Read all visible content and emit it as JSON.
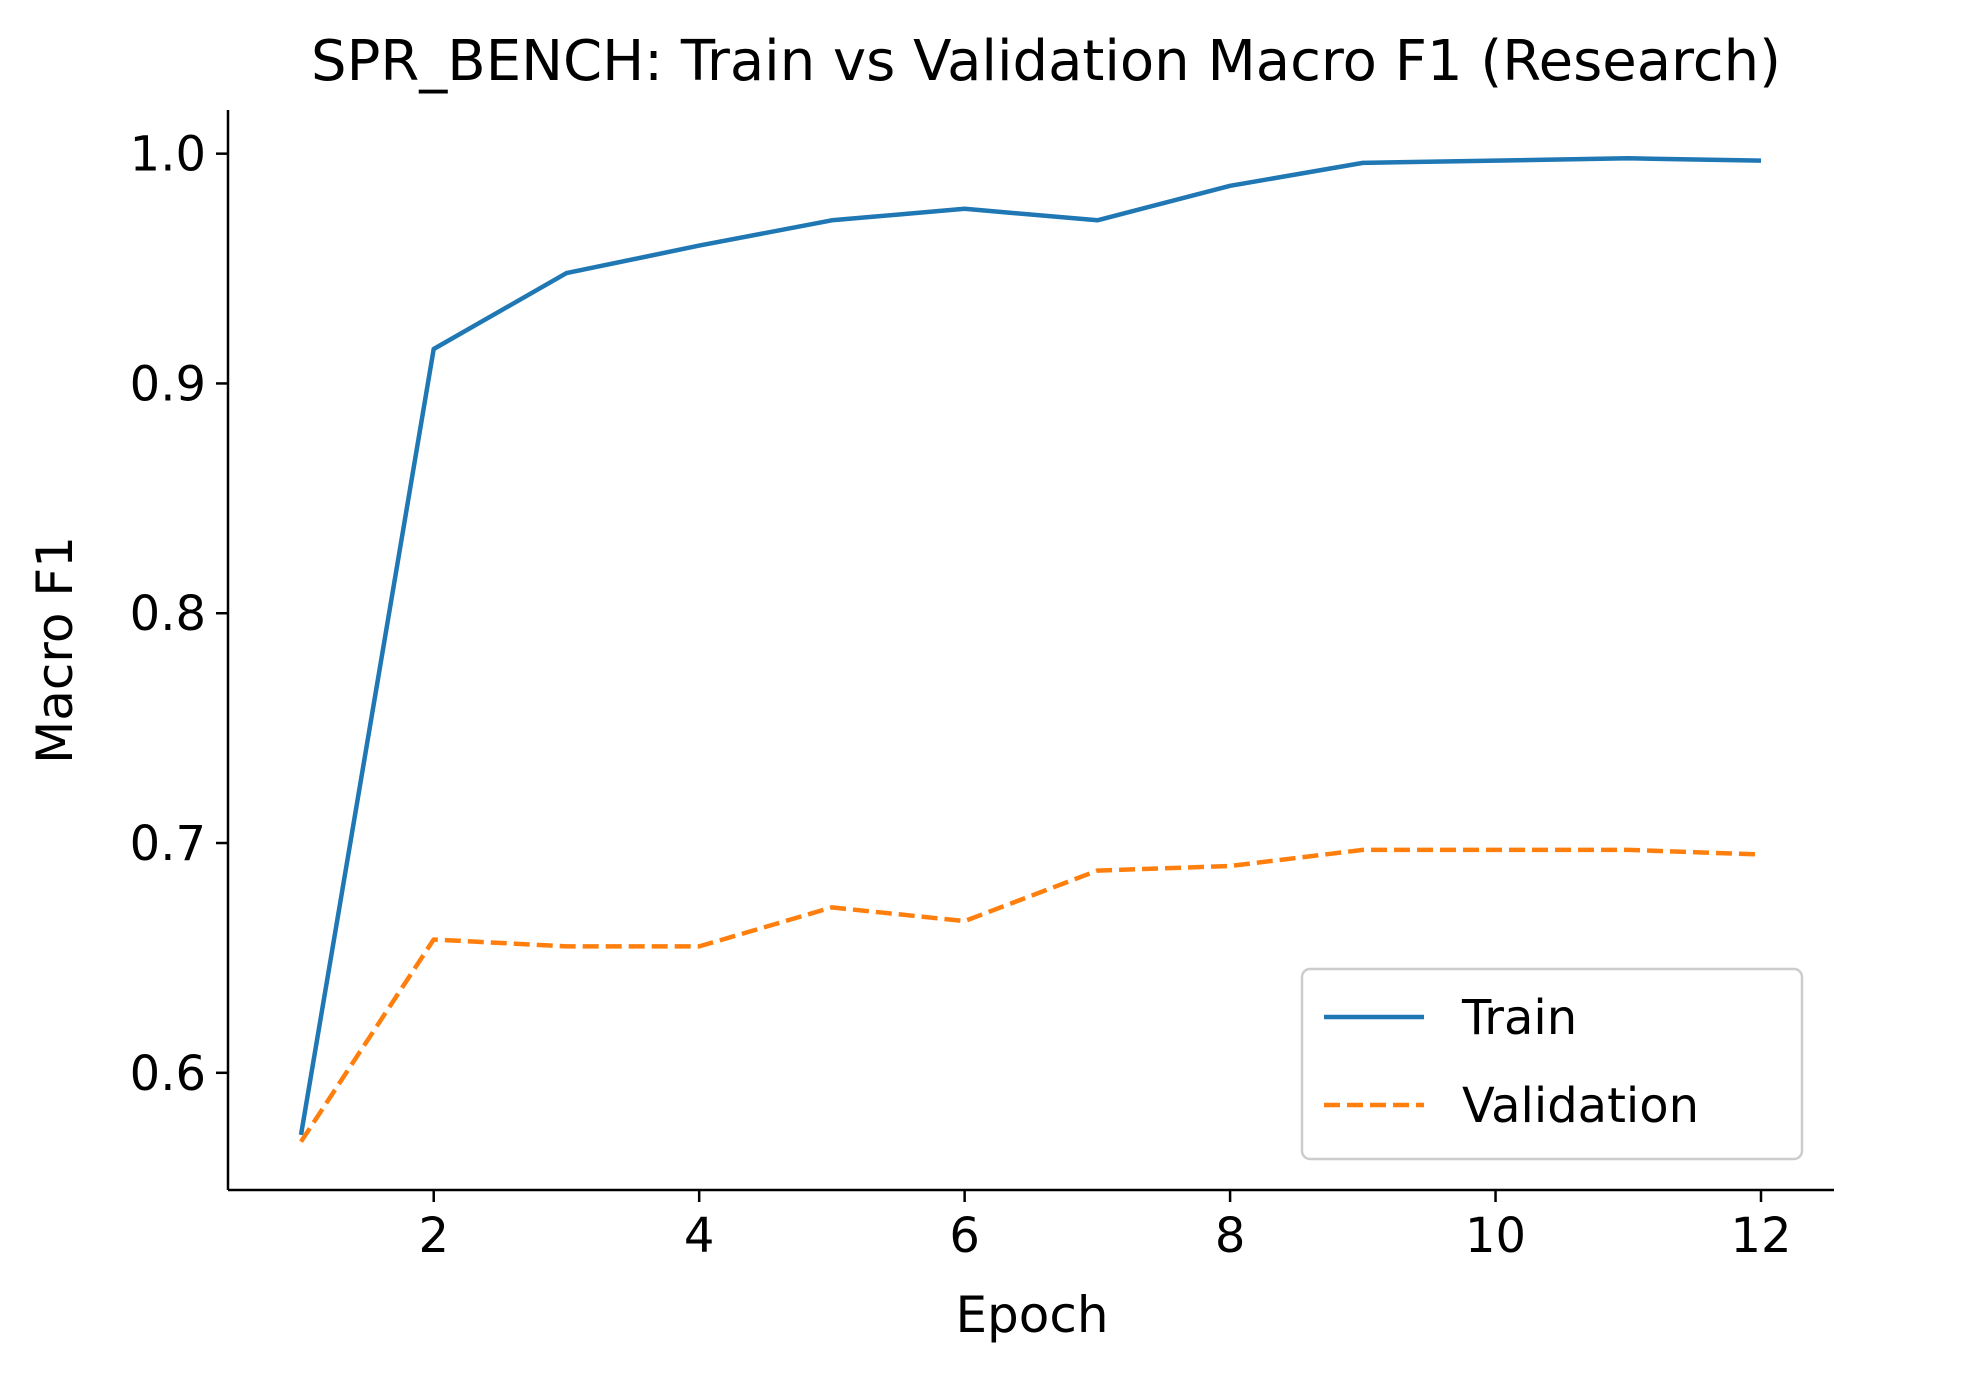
{
  "chart_data": {
    "type": "line",
    "title": "SPR_BENCH: Train vs Validation Macro F1 (Research)",
    "xlabel": "Epoch",
    "ylabel": "Macro F1",
    "x": [
      1,
      2,
      3,
      4,
      5,
      6,
      7,
      8,
      9,
      10,
      11,
      12
    ],
    "xlim": [
      0.45,
      12.55
    ],
    "ylim": [
      0.549,
      1.019
    ],
    "xticks": [
      2,
      4,
      6,
      8,
      10,
      12
    ],
    "yticks": [
      0.6,
      0.7,
      0.8,
      0.9,
      1.0
    ],
    "xtick_labels": [
      "2",
      "4",
      "6",
      "8",
      "10",
      "12"
    ],
    "ytick_labels": [
      "0.6",
      "0.7",
      "0.8",
      "0.9",
      "1.0"
    ],
    "grid": false,
    "legend_position": "lower-right",
    "series": [
      {
        "name": "Train",
        "color": "#1f77b4",
        "style": "solid",
        "values": [
          0.573,
          0.915,
          0.948,
          0.96,
          0.971,
          0.976,
          0.971,
          0.986,
          0.996,
          0.997,
          0.998,
          0.997
        ]
      },
      {
        "name": "Validation",
        "color": "#ff7f0e",
        "style": "dashed",
        "values": [
          0.57,
          0.658,
          0.655,
          0.655,
          0.672,
          0.666,
          0.688,
          0.69,
          0.697,
          0.697,
          0.697,
          0.695
        ]
      }
    ]
  }
}
